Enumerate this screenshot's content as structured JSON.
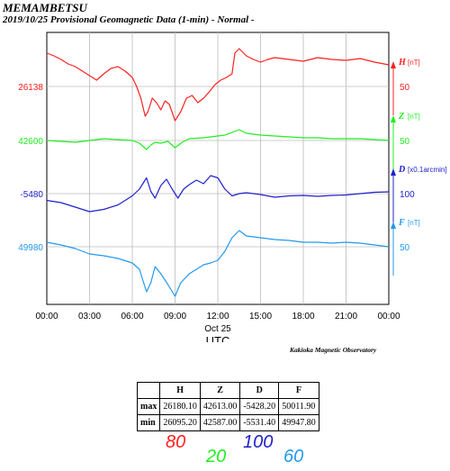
{
  "header": {
    "station": "MEMAMBETSU",
    "subtitle": "2019/10/25  Provisional Geomagnetic Data (1-min)  - Normal -"
  },
  "footer": {
    "observatory": "Kakioka Magnetic Observatory"
  },
  "chart_data": {
    "type": "line",
    "x_axis": {
      "range": [
        "00:00",
        "24:00"
      ],
      "ticks": [
        "00:00",
        "03:00",
        "06:00",
        "09:00",
        "12:00",
        "15:00",
        "18:00",
        "21:00",
        "00:00"
      ],
      "date_label": "Oct 25",
      "label": "UTC"
    },
    "grid": true,
    "series": [
      {
        "name": "H",
        "unit": "[nT]",
        "color": "#ff2020",
        "left_label": "26138",
        "scale_label": "50",
        "points": [
          [
            0,
            26175
          ],
          [
            0.5,
            26172
          ],
          [
            1,
            26168
          ],
          [
            1.5,
            26163
          ],
          [
            2,
            26160
          ],
          [
            2.5,
            26155
          ],
          [
            3,
            26150
          ],
          [
            3.5,
            26145
          ],
          [
            4,
            26152
          ],
          [
            4.5,
            26158
          ],
          [
            5,
            26160
          ],
          [
            5.5,
            26155
          ],
          [
            6,
            26148
          ],
          [
            6.3,
            26138
          ],
          [
            6.6,
            26125
          ],
          [
            6.9,
            26105
          ],
          [
            7.1,
            26110
          ],
          [
            7.4,
            26125
          ],
          [
            7.7,
            26120
          ],
          [
            8,
            26112
          ],
          [
            8.3,
            26122
          ],
          [
            8.6,
            26118
          ],
          [
            9,
            26100
          ],
          [
            9.4,
            26110
          ],
          [
            9.8,
            26125
          ],
          [
            10.2,
            26128
          ],
          [
            10.6,
            26120
          ],
          [
            11,
            26125
          ],
          [
            11.4,
            26132
          ],
          [
            11.8,
            26140
          ],
          [
            12.2,
            26145
          ],
          [
            12.6,
            26148
          ],
          [
            13,
            26152
          ],
          [
            13.2,
            26175
          ],
          [
            13.5,
            26180
          ],
          [
            14,
            26172
          ],
          [
            14.5,
            26168
          ],
          [
            15,
            26165
          ],
          [
            15.5,
            26168
          ],
          [
            16,
            26170
          ],
          [
            17,
            26168
          ],
          [
            18,
            26166
          ],
          [
            19,
            26170
          ],
          [
            20,
            26168
          ],
          [
            21,
            26167
          ],
          [
            22,
            26169
          ],
          [
            23,
            26165
          ],
          [
            24,
            26162
          ]
        ]
      },
      {
        "name": "Z",
        "unit": "[nT]",
        "color": "#22ee22",
        "left_label": "42600",
        "scale_label": "50",
        "points": [
          [
            0,
            42600
          ],
          [
            1,
            42599
          ],
          [
            2,
            42598
          ],
          [
            3,
            42600
          ],
          [
            4,
            42602
          ],
          [
            5,
            42601
          ],
          [
            6,
            42600
          ],
          [
            6.5,
            42597
          ],
          [
            7,
            42590
          ],
          [
            7.3,
            42595
          ],
          [
            7.6,
            42598
          ],
          [
            8,
            42597
          ],
          [
            8.5,
            42599
          ],
          [
            9,
            42592
          ],
          [
            9.5,
            42598
          ],
          [
            10,
            42602
          ],
          [
            11,
            42603
          ],
          [
            12,
            42605
          ],
          [
            12.5,
            42606
          ],
          [
            13,
            42609
          ],
          [
            13.5,
            42612
          ],
          [
            14,
            42608
          ],
          [
            15,
            42606
          ],
          [
            16,
            42605
          ],
          [
            17,
            42604
          ],
          [
            18,
            42603
          ],
          [
            19,
            42603
          ],
          [
            20,
            42602
          ],
          [
            21,
            42602
          ],
          [
            22,
            42602
          ],
          [
            23,
            42601
          ],
          [
            24,
            42600
          ]
        ]
      },
      {
        "name": "D",
        "unit": "[x0.1arcmin]",
        "color": "#2020cc",
        "left_label": "-5480",
        "scale_label": "100",
        "points": [
          [
            0,
            -5495
          ],
          [
            1,
            -5500
          ],
          [
            2,
            -5510
          ],
          [
            3,
            -5520
          ],
          [
            4,
            -5515
          ],
          [
            5,
            -5505
          ],
          [
            6,
            -5485
          ],
          [
            6.5,
            -5470
          ],
          [
            7,
            -5445
          ],
          [
            7.3,
            -5475
          ],
          [
            7.6,
            -5490
          ],
          [
            8,
            -5462
          ],
          [
            8.4,
            -5448
          ],
          [
            8.8,
            -5470
          ],
          [
            9.2,
            -5490
          ],
          [
            9.6,
            -5470
          ],
          [
            10,
            -5460
          ],
          [
            10.5,
            -5450
          ],
          [
            11,
            -5458
          ],
          [
            11.5,
            -5440
          ],
          [
            12,
            -5445
          ],
          [
            12.5,
            -5470
          ],
          [
            13,
            -5485
          ],
          [
            13.5,
            -5480
          ],
          [
            14,
            -5478
          ],
          [
            15,
            -5482
          ],
          [
            16,
            -5488
          ],
          [
            17,
            -5485
          ],
          [
            18,
            -5484
          ],
          [
            19,
            -5486
          ],
          [
            20,
            -5484
          ],
          [
            21,
            -5483
          ],
          [
            22,
            -5480
          ],
          [
            23,
            -5477
          ],
          [
            24,
            -5476
          ]
        ]
      },
      {
        "name": "F",
        "unit": "[nT]",
        "color": "#2299ee",
        "left_label": "49980",
        "scale_label": "50",
        "points": [
          [
            0,
            49985
          ],
          [
            1,
            49982
          ],
          [
            2,
            49978
          ],
          [
            3,
            49972
          ],
          [
            4,
            49970
          ],
          [
            5,
            49967
          ],
          [
            6,
            49962
          ],
          [
            6.5,
            49955
          ],
          [
            7,
            49930
          ],
          [
            7.3,
            49940
          ],
          [
            7.6,
            49958
          ],
          [
            8,
            49950
          ],
          [
            8.5,
            49938
          ],
          [
            9,
            49925
          ],
          [
            9.4,
            49940
          ],
          [
            10,
            49950
          ],
          [
            10.5,
            49955
          ],
          [
            11,
            49960
          ],
          [
            11.5,
            49962
          ],
          [
            12,
            49965
          ],
          [
            12.5,
            49975
          ],
          [
            13,
            49990
          ],
          [
            13.5,
            49998
          ],
          [
            14,
            49992
          ],
          [
            15,
            49990
          ],
          [
            16,
            49988
          ],
          [
            17,
            49987
          ],
          [
            18,
            49985
          ],
          [
            19,
            49985
          ],
          [
            20,
            49984
          ],
          [
            21,
            49985
          ],
          [
            22,
            49984
          ],
          [
            23,
            49982
          ],
          [
            24,
            49980
          ]
        ]
      }
    ]
  },
  "stats_table": {
    "headers": [
      "",
      "H",
      "Z",
      "D",
      "F"
    ],
    "rows": [
      {
        "label": "max",
        "H": "26180.10",
        "Z": "42613.00",
        "D": "-5428.20",
        "F": "50011.90"
      },
      {
        "label": "min",
        "H": "26095.20",
        "Z": "42587.00",
        "D": "-5531.40",
        "F": "49947.80"
      }
    ]
  },
  "scale_notes": [
    {
      "text": "80",
      "color": "#ff2020"
    },
    {
      "text": "20",
      "color": "#22ee22"
    },
    {
      "text": "100",
      "color": "#2020cc"
    },
    {
      "text": "60",
      "color": "#2299ee"
    }
  ]
}
